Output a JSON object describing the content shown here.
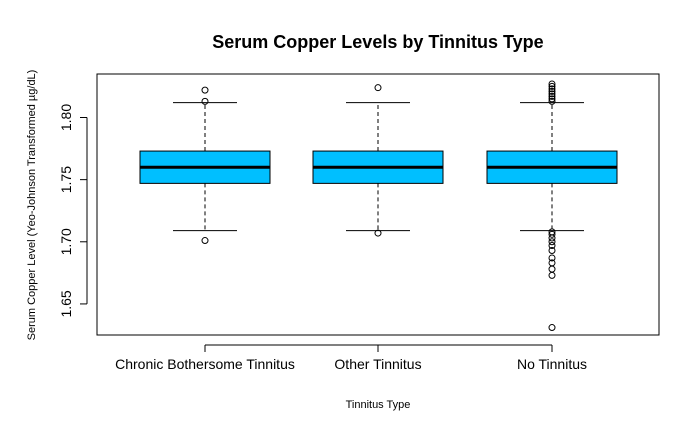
{
  "chart_data": {
    "type": "boxplot",
    "title": "Serum Copper Levels by Tinnitus Type",
    "xlabel": "Tinnitus Type",
    "ylabel": "Serum Copper Level (Yeo-Johnson Transformed µg/dL)",
    "ylim": [
      1.625,
      1.835
    ],
    "yticks": [
      1.65,
      1.7,
      1.75,
      1.8
    ],
    "ytick_labels": [
      "1.65",
      "1.70",
      "1.75",
      "1.80"
    ],
    "box_color": "#00BFFF",
    "grid": false,
    "categories": [
      "Chronic Bothersome Tinnitus",
      "Other Tinnitus",
      "No Tinnitus"
    ],
    "boxes": [
      {
        "category": "Chronic Bothersome Tinnitus",
        "whisker_low": 1.709,
        "q1": 1.747,
        "median": 1.76,
        "q3": 1.773,
        "whisker_high": 1.812,
        "outliers": [
          1.701,
          1.813,
          1.822
        ]
      },
      {
        "category": "Other Tinnitus",
        "whisker_low": 1.709,
        "q1": 1.747,
        "median": 1.76,
        "q3": 1.773,
        "whisker_high": 1.812,
        "outliers": [
          1.707,
          1.824
        ]
      },
      {
        "category": "No Tinnitus",
        "whisker_low": 1.709,
        "q1": 1.747,
        "median": 1.76,
        "q3": 1.773,
        "whisker_high": 1.812,
        "outliers": [
          1.631,
          1.673,
          1.678,
          1.683,
          1.687,
          1.693,
          1.697,
          1.7,
          1.703,
          1.706,
          1.708,
          1.813,
          1.815,
          1.817,
          1.819,
          1.821,
          1.823,
          1.825,
          1.827
        ]
      }
    ]
  }
}
